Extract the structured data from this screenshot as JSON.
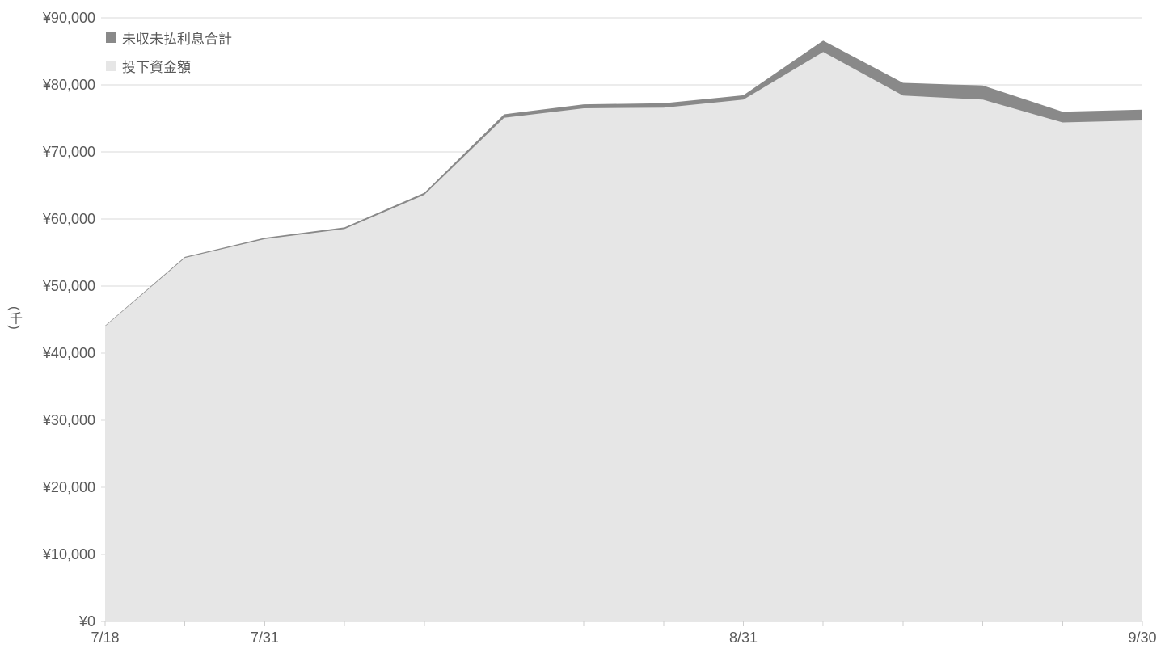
{
  "chart_data": {
    "type": "area",
    "stacked": true,
    "title": "",
    "xlabel": "",
    "ylabel": "(千)",
    "ylim": [
      0,
      90000
    ],
    "grid": true,
    "legend_position": "top-left-inside",
    "n_points": 14,
    "y_ticks": [
      {
        "value": 90000,
        "label": "¥90,000"
      },
      {
        "value": 80000,
        "label": "¥80,000"
      },
      {
        "value": 70000,
        "label": "¥70,000"
      },
      {
        "value": 60000,
        "label": "¥60,000"
      },
      {
        "value": 50000,
        "label": "¥50,000"
      },
      {
        "value": 40000,
        "label": "¥40,000"
      },
      {
        "value": 30000,
        "label": "¥30,000"
      },
      {
        "value": 20000,
        "label": "¥20,000"
      },
      {
        "value": 10000,
        "label": "¥10,000"
      },
      {
        "value": 0,
        "label": "¥0"
      }
    ],
    "x_ticks": [
      {
        "index": 0,
        "label": "7/18"
      },
      {
        "index": 2,
        "label": "7/31"
      },
      {
        "index": 8,
        "label": "8/31"
      },
      {
        "index": 13,
        "label": "9/30"
      }
    ],
    "series": [
      {
        "name": "投下資金額",
        "color": "#e6e6e6",
        "values": [
          44000,
          54200,
          57000,
          58500,
          63600,
          75100,
          76500,
          76600,
          77800,
          84900,
          78400,
          77800,
          74400,
          74700
        ]
      },
      {
        "name": "未収未払利息合計",
        "color": "#898989",
        "values": [
          100,
          150,
          200,
          250,
          300,
          500,
          600,
          650,
          650,
          1700,
          1900,
          2100,
          1600,
          1600
        ]
      }
    ],
    "grid_color": "#dadada",
    "axis_color": "#cfcfcf",
    "text_color": "#595959",
    "units_note": "values in thousand yen (千)"
  }
}
